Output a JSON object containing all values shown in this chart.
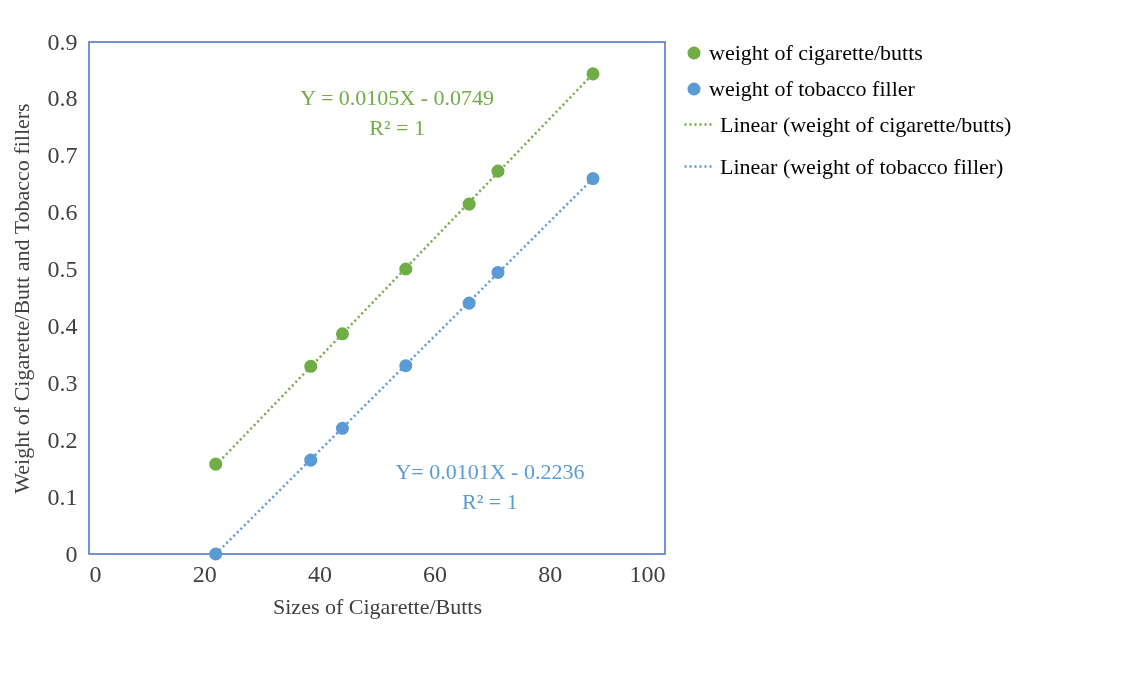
{
  "chart_data": {
    "type": "scatter",
    "xlabel": "Sizes of Cigarette/Butts",
    "ylabel": "Weight of Cigarette/Butt and Tobacco fillers",
    "xlim": [
      0,
      100
    ],
    "xticks": [
      0,
      20,
      40,
      60,
      80,
      100
    ],
    "ylim": [
      0,
      0.9
    ],
    "yticks": [
      0,
      0.1,
      0.2,
      0.3,
      0.4,
      0.5,
      0.6,
      0.7,
      0.8,
      0.9
    ],
    "legend": "right",
    "series": [
      {
        "name": "weight of cigarette/butts",
        "marker": "circle",
        "color": "#70ad47",
        "x": [
          22,
          38.5,
          44,
          55,
          66,
          71,
          87.5
        ],
        "values": [
          0.158,
          0.33,
          0.387,
          0.501,
          0.615,
          0.673,
          0.844
        ]
      },
      {
        "name": "weight of tobacco filler",
        "marker": "circle",
        "color": "#5b9bd5",
        "x": [
          22,
          38.5,
          44,
          55,
          66,
          71,
          87.5
        ],
        "values": [
          0.0,
          0.165,
          0.221,
          0.331,
          0.441,
          0.495,
          0.66
        ]
      },
      {
        "name": "Linear (weight of cigarette/butts)",
        "type": "line",
        "line_style": "dotted",
        "color": "#70ad47",
        "x": [
          22,
          87.5
        ],
        "values": [
          0.156,
          0.844
        ]
      },
      {
        "name": "Linear (weight of tobacco filler)",
        "type": "line",
        "line_style": "dotted",
        "color": "#5b9bd5",
        "x": [
          22,
          87.5
        ],
        "values": [
          0.0,
          0.66
        ]
      }
    ],
    "annotations": [
      "Y = 0.0105X - 0.0749\nR² = 1",
      "Y= 0.0101X - 0.2236\nR² = 1"
    ]
  }
}
